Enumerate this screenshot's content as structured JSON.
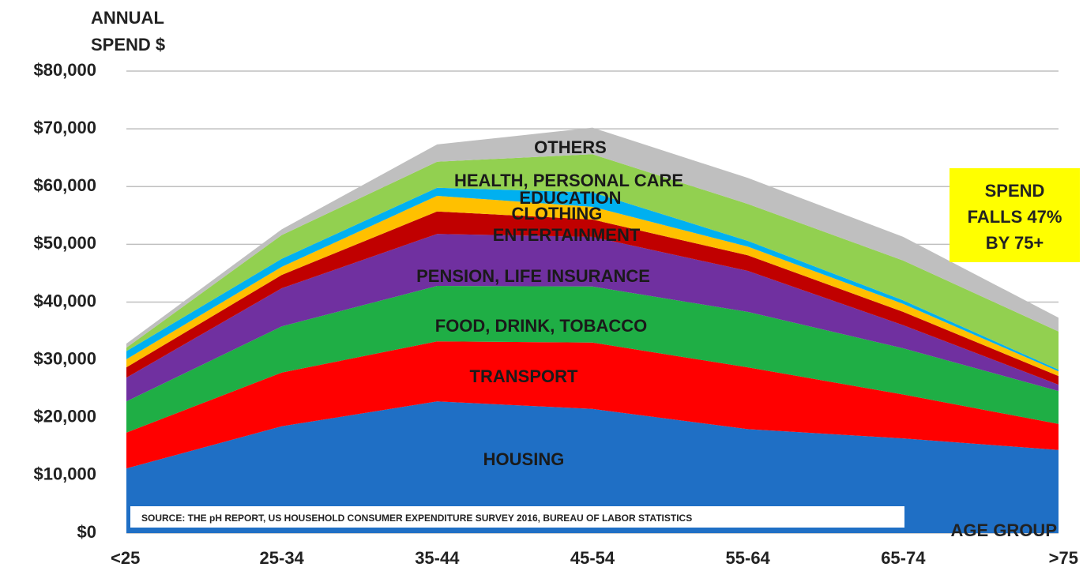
{
  "chart_data": {
    "type": "stacked_area",
    "y_label": "ANNUAL SPEND $",
    "x_label": "AGE GROUP",
    "annotation": "SPEND FALLS 47% BY 75+",
    "source": "SOURCE: THE pH REPORT, US HOUSEHOLD CONSUMER EXPENDITURE SURVEY 2016, BUREAU OF LABOR STATISTICS",
    "categories": [
      "<25",
      "25-34",
      "35-44",
      "45-54",
      "55-64",
      "65-74",
      ">75"
    ],
    "series": [
      {
        "name": "HOUSING",
        "color": "#1f6fc5",
        "values": [
          11200,
          18500,
          22800,
          21500,
          18000,
          16400,
          14400
        ]
      },
      {
        "name": "TRANSPORT",
        "color": "#ff0000",
        "values": [
          6200,
          9300,
          10400,
          11500,
          10700,
          7600,
          4500
        ]
      },
      {
        "name": "FOOD, DRINK, TOBACCO",
        "color": "#1fae45",
        "values": [
          5400,
          8000,
          9600,
          9700,
          9600,
          8000,
          5700
        ]
      },
      {
        "name": "PENSION, LIFE INSURANCE",
        "color": "#7030a0",
        "values": [
          4100,
          6600,
          9000,
          8600,
          7100,
          4000,
          1100
        ]
      },
      {
        "name": "ENTERTAINMENT",
        "color": "#c00000",
        "values": [
          1800,
          2300,
          3900,
          3000,
          2700,
          2300,
          1500
        ]
      },
      {
        "name": "CLOTHING",
        "color": "#ffc000",
        "values": [
          1400,
          1400,
          2700,
          2200,
          1500,
          1400,
          800
        ]
      },
      {
        "name": "EDUCATION",
        "color": "#00b0f0",
        "values": [
          1400,
          1400,
          1400,
          2500,
          1000,
          600,
          300
        ]
      },
      {
        "name": "HEALTH, PERSONAL CARE",
        "color": "#92d050",
        "values": [
          600,
          4100,
          4500,
          6600,
          6400,
          6900,
          6600
        ]
      },
      {
        "name": "OTHERS",
        "color": "#bfbfbf",
        "values": [
          700,
          1000,
          3000,
          4600,
          4500,
          4100,
          2400
        ]
      }
    ],
    "ylim": [
      0,
      80000
    ],
    "yticks": [
      {
        "value": 0,
        "label": "$0"
      },
      {
        "value": 10000,
        "label": "$10,000"
      },
      {
        "value": 20000,
        "label": "$20,000"
      },
      {
        "value": 30000,
        "label": "$30,000"
      },
      {
        "value": 40000,
        "label": "$40,000"
      },
      {
        "value": 50000,
        "label": "$50,000"
      },
      {
        "value": 60000,
        "label": "$60,000"
      },
      {
        "value": 70000,
        "label": "$70,000"
      },
      {
        "value": 80000,
        "label": "$80,000"
      }
    ],
    "grid": true
  }
}
